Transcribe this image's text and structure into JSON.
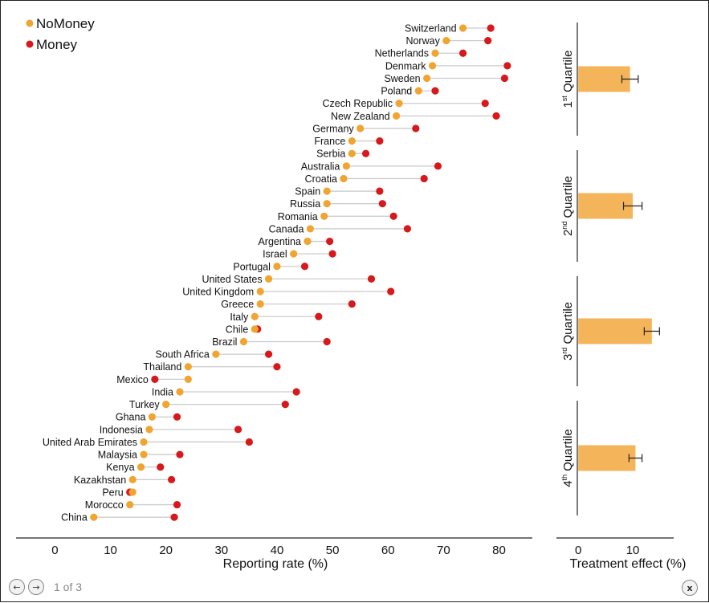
{
  "colors": {
    "nomoney": "#F0A530",
    "money": "#D7191C",
    "bar": "#F4B459",
    "line": "#cccccc",
    "axis": "#222222"
  },
  "legend": {
    "nomoney": "NoMoney",
    "money": "Money"
  },
  "pager": {
    "page_label": "1 of 3",
    "prev_icon": "←",
    "next_icon": "→",
    "close_icon": "x"
  },
  "chart_data": [
    {
      "type": "dumbbell",
      "xlabel": "Reporting rate (%)",
      "ylabel": "",
      "xlim": [
        -7,
        86
      ],
      "xticks": [
        0,
        10,
        20,
        30,
        40,
        50,
        60,
        70,
        80
      ],
      "categories": [
        "Switzerland",
        "Norway",
        "Netherlands",
        "Denmark",
        "Sweden",
        "Poland",
        "Czech Republic",
        "New Zealand",
        "Germany",
        "France",
        "Serbia",
        "Australia",
        "Croatia",
        "Spain",
        "Russia",
        "Romania",
        "Canada",
        "Argentina",
        "Israel",
        "Portugal",
        "United States",
        "United Kingdom",
        "Greece",
        "Italy",
        "Chile",
        "Brazil",
        "South Africa",
        "Thailand",
        "Mexico",
        "India",
        "Turkey",
        "Ghana",
        "Indonesia",
        "United Arab Emirates",
        "Malaysia",
        "Kenya",
        "Kazakhstan",
        "Peru",
        "Morocco",
        "China"
      ],
      "series": [
        {
          "name": "NoMoney",
          "values": [
            73.5,
            70.5,
            68.5,
            68,
            67,
            65.5,
            62,
            61.5,
            55,
            53.5,
            53.5,
            52.5,
            52,
            49,
            49,
            48.5,
            46,
            45.5,
            43,
            40,
            38.5,
            37,
            37,
            36,
            36,
            34,
            29,
            24,
            24,
            22.5,
            20,
            17.5,
            17,
            16,
            16,
            15.5,
            14,
            14,
            13.5,
            7
          ]
        },
        {
          "name": "Money",
          "values": [
            78.5,
            78,
            73.5,
            81.5,
            81,
            68.5,
            77.5,
            79.5,
            65,
            58.5,
            56,
            69,
            66.5,
            58.5,
            59,
            61,
            63.5,
            49.5,
            50,
            45,
            57,
            60.5,
            53.5,
            47.5,
            36.5,
            49,
            38.5,
            40,
            18,
            43.5,
            41.5,
            22,
            33,
            35,
            22.5,
            19,
            21,
            13.5,
            22,
            21.5
          ]
        }
      ]
    },
    {
      "type": "bar",
      "xlabel": "Treatment effect (%)",
      "xlim": [
        -4,
        17.5
      ],
      "xticks": [
        0,
        10
      ],
      "categories": [
        "1st Quartile",
        "2nd Quartile",
        "3rd Quartile",
        "4th Quartile"
      ],
      "quartile_labels": [
        {
          "num": "1",
          "sup": "st",
          "word": " Quartile"
        },
        {
          "num": "2",
          "sup": "nd",
          "word": " Quartile"
        },
        {
          "num": "3",
          "sup": "rd",
          "word": " Quartile"
        },
        {
          "num": "4",
          "sup": "th",
          "word": " Quartile"
        }
      ],
      "values": [
        9.5,
        10,
        13.5,
        10.5
      ],
      "errors": [
        1.5,
        1.7,
        1.4,
        1.2
      ]
    }
  ]
}
